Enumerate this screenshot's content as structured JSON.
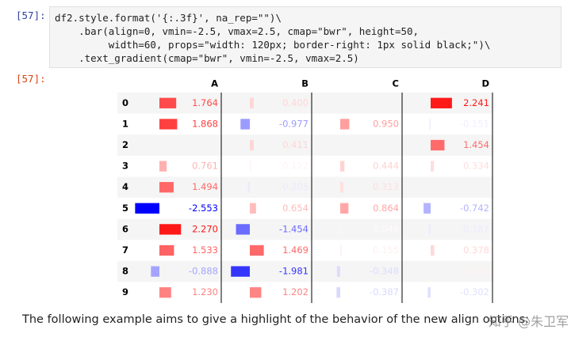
{
  "input_prompt": "[57]:",
  "code_lines": [
    "df2.style.format('{:.3f}', na_rep=\"\")\\",
    "    .bar(align=0, vmin=-2.5, vmax=2.5, cmap=\"bwr\", height=50,",
    "         width=60, props=\"width: 120px; border-right: 1px solid black;\")\\",
    "    .text_gradient(cmap=\"bwr\", vmin=-2.5, vmax=2.5)"
  ],
  "output_prompt": "[57]:",
  "table": {
    "columns": [
      "A",
      "B",
      "C",
      "D"
    ],
    "index": [
      "0",
      "1",
      "2",
      "3",
      "4",
      "5",
      "6",
      "7",
      "8",
      "9"
    ],
    "values": [
      [
        1.764,
        0.4,
        null,
        2.241
      ],
      [
        1.868,
        -0.977,
        0.95,
        -0.151
      ],
      [
        null,
        0.411,
        null,
        1.454
      ],
      [
        0.761,
        0.122,
        0.444,
        0.334
      ],
      [
        1.494,
        -0.205,
        0.313,
        null
      ],
      [
        -2.553,
        0.654,
        0.864,
        -0.742
      ],
      [
        2.27,
        -1.454,
        0.046,
        -0.187
      ],
      [
        1.533,
        1.469,
        0.155,
        0.378
      ],
      [
        -0.888,
        -1.981,
        -0.348,
        0.156
      ],
      [
        1.23,
        1.202,
        -0.387,
        -0.302
      ]
    ],
    "labels": [
      [
        "1.764",
        "0.400",
        null,
        "2.241"
      ],
      [
        "1.868",
        "-0.977",
        "0.950",
        "-0.151"
      ],
      [
        null,
        "0.411",
        null,
        "1.454"
      ],
      [
        "0.761",
        "0.122",
        "0.444",
        "0.334"
      ],
      [
        "1.494",
        "-0.205",
        "0.313",
        null
      ],
      [
        "-2.553",
        "0.654",
        "0.864",
        "-0.742"
      ],
      [
        "2.270",
        "-1.454",
        "0.046",
        "-0.187"
      ],
      [
        "1.533",
        "1.469",
        "0.155",
        "0.378"
      ],
      [
        "-0.888",
        "-1.981",
        "-0.348",
        "0.156"
      ],
      [
        "1.230",
        "1.202",
        "-0.387",
        "-0.302"
      ]
    ]
  },
  "caption": "The following example aims to give a highlight of the behavior of the new align options:",
  "watermark": "知乎 @朱卫军"
}
